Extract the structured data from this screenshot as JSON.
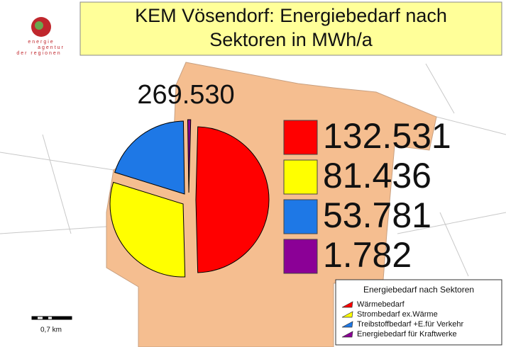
{
  "logo": {
    "line1": "energie",
    "line2": "agentur",
    "line3": "der regionen"
  },
  "scale_bar": {
    "label": "0,7 km"
  },
  "chart_data": {
    "type": "pie",
    "title": "KEM Vösendorf: Energiebedarf nach Sektoren in MWh/a",
    "total": {
      "value": 269530,
      "label": "269.530"
    },
    "legend_title": "Energiebedarf nach Sektoren",
    "categories": [
      "Wärmebedarf",
      "Strombedarf ex.Wärme",
      "Treibstoffbedarf +E.für Verkehr",
      "Energiebedarf für Kraftwerke"
    ],
    "values": [
      132531,
      81436,
      53781,
      1782
    ],
    "value_labels": [
      "132.531",
      "81.436",
      "53.781",
      "1.782"
    ],
    "colors": [
      "#ff0000",
      "#ffff00",
      "#1e78e6",
      "#8b0096"
    ]
  }
}
